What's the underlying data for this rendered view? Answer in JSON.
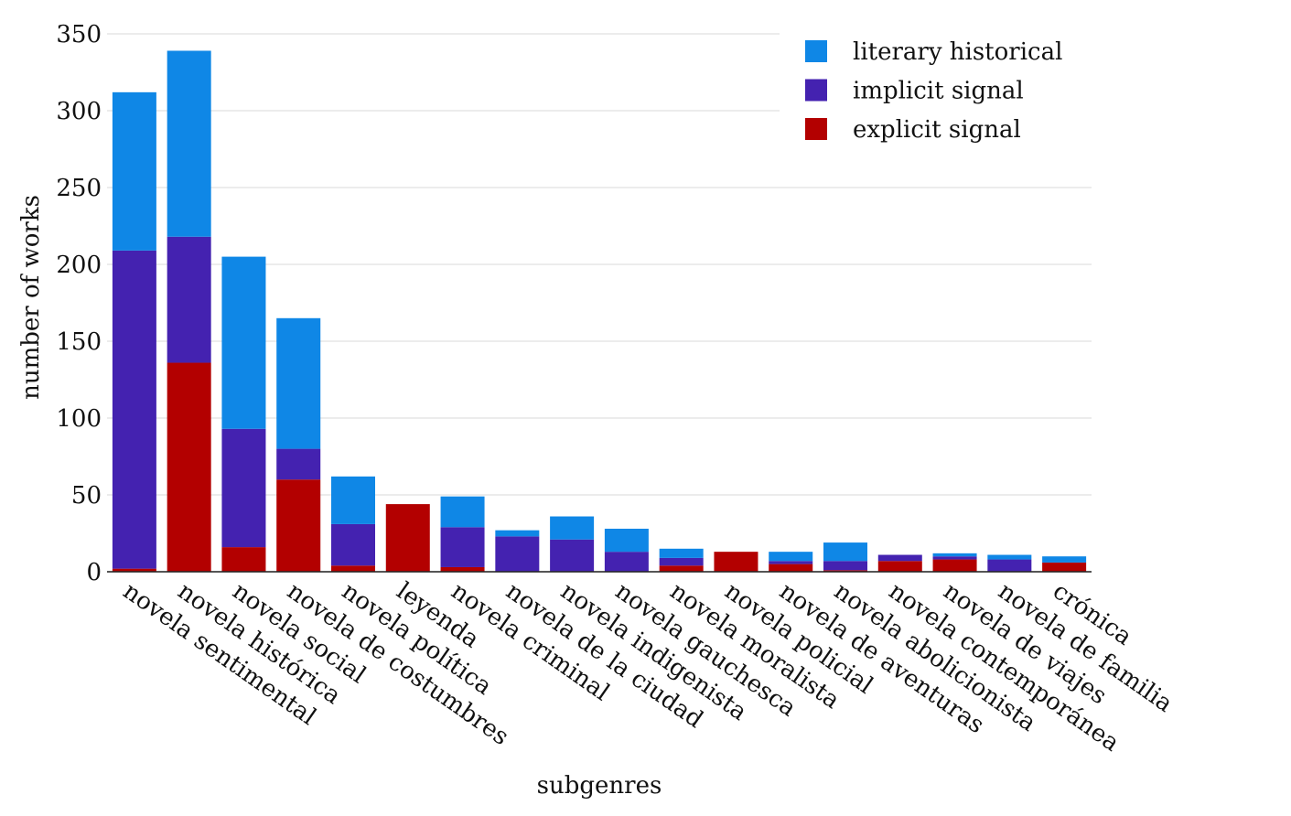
{
  "chart_data": {
    "type": "stacked_bar",
    "x_label": "subgenres",
    "y_label": "number of works",
    "categories": [
      "novela sentimental",
      "novela histórica",
      "novela social",
      "novela de costumbres",
      "novela política",
      "leyenda",
      "novela criminal",
      "novela de la ciudad",
      "novela indigenista",
      "novela gauchesca",
      "novela moralista",
      "novela policial",
      "novela de aventuras",
      "novela abolicionista",
      "novela contemporánea",
      "novela de viajes",
      "novela de familia",
      "crónica"
    ],
    "series": [
      {
        "name": "explicit signal",
        "color": "#b30000",
        "values": [
          2,
          136,
          16,
          60,
          4,
          44,
          3,
          0,
          0,
          0,
          4,
          13,
          5,
          1,
          7,
          8,
          0,
          6
        ]
      },
      {
        "name": "implicit signal",
        "color": "#4422b0",
        "values": [
          207,
          82,
          77,
          20,
          27,
          0,
          26,
          23,
          21,
          13,
          5,
          0,
          2,
          6,
          4,
          2,
          8,
          0
        ]
      },
      {
        "name": "literary historical",
        "color": "#0f87e6",
        "values": [
          103,
          121,
          112,
          85,
          31,
          0,
          20,
          4,
          15,
          15,
          6,
          0,
          6,
          12,
          0,
          2,
          3,
          4
        ]
      }
    ],
    "ylim": [
      0,
      350
    ],
    "yticks": [
      0,
      50,
      100,
      150,
      200,
      250,
      300,
      350
    ],
    "grid": true,
    "legend": "top-right"
  }
}
